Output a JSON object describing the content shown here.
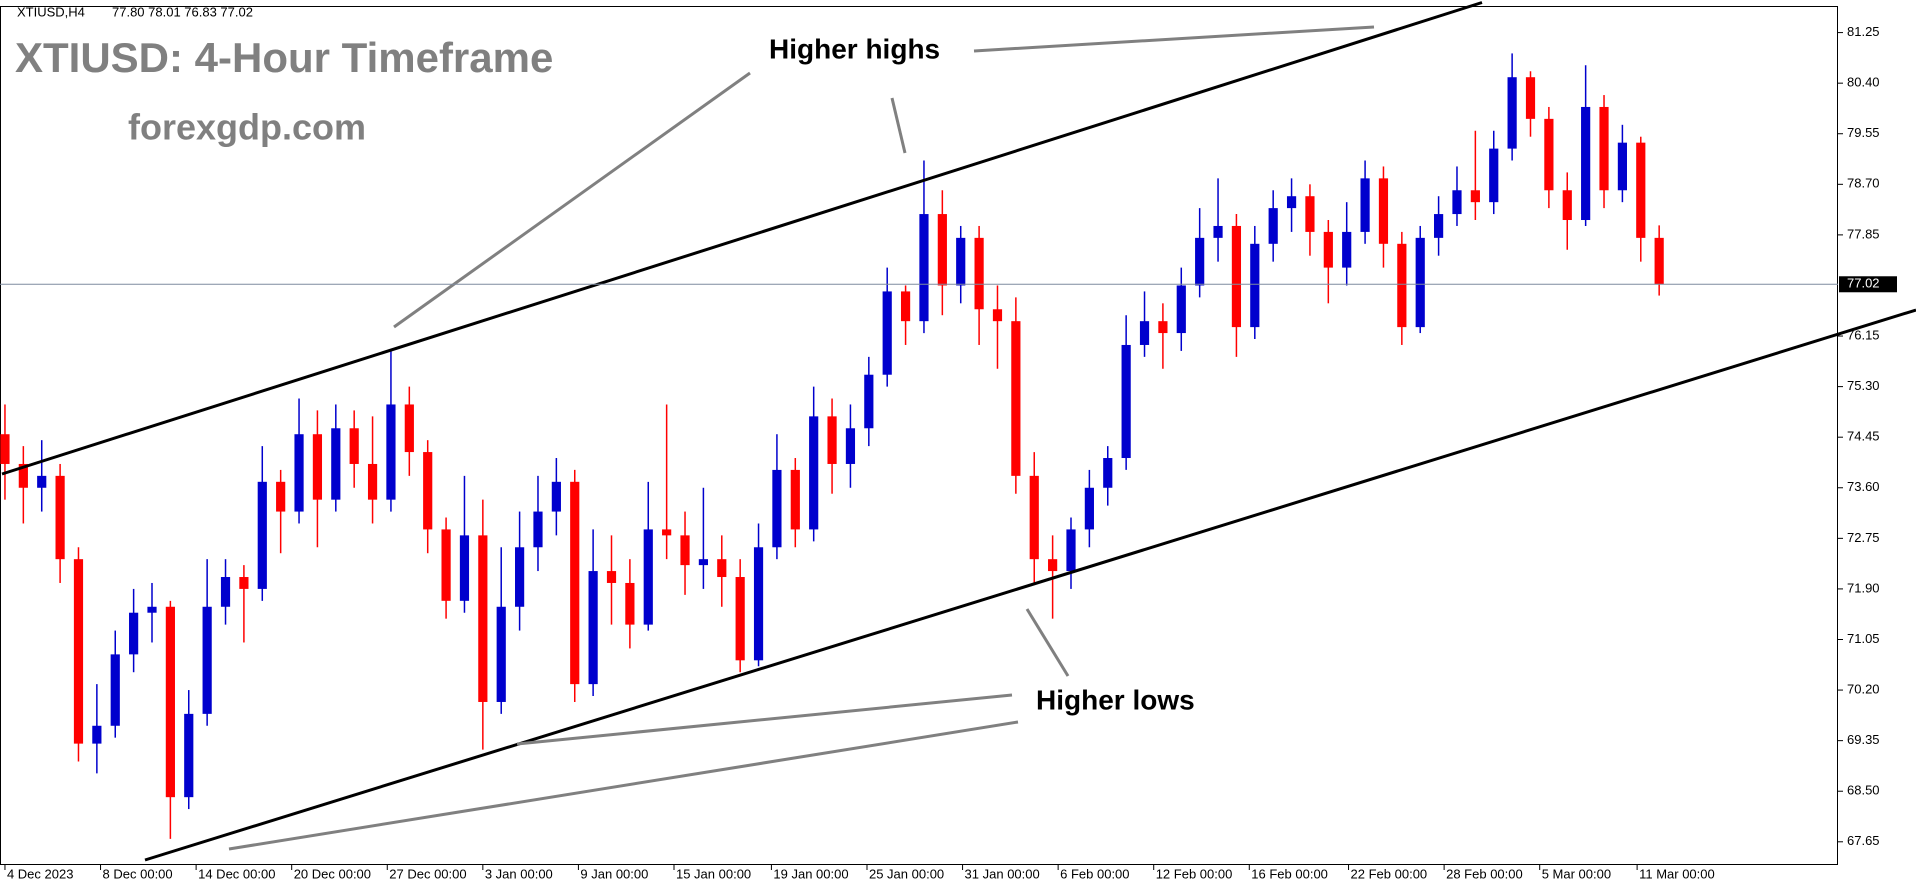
{
  "chart_data": {
    "type": "candlestick",
    "symbol": "XTIUSD,H4",
    "ohlc_text": "77.80 78.01 76.83 77.02",
    "title": "XTIUSD: 4-Hour Timeframe",
    "subtitle": "forexgdp.com",
    "annotations": [
      "Higher highs",
      "Higher lows"
    ],
    "up_color": "#0000cd",
    "down_color": "#ff0000",
    "last_price": 77.02,
    "xlim": [
      -0.27,
      99.73
    ],
    "ylim": [
      67.26,
      81.68
    ],
    "yticks": [
      67.65,
      {
        "value": 68.5,
        "label": "68.50"
      },
      69.35,
      {
        "value": 70.2,
        "label": "70.20"
      },
      71.05,
      {
        "value": 71.9,
        "label": "71.90"
      },
      72.75,
      {
        "value": 73.6,
        "label": "73.60"
      },
      74.45,
      {
        "value": 75.3,
        "label": "75.30"
      },
      76.15,
      77.85,
      {
        "value": 78.7,
        "label": "78.70"
      },
      79.55,
      {
        "value": 80.4,
        "label": "80.40"
      },
      81.25
    ],
    "xticks": [
      {
        "value": 0,
        "label": "4 Dec 2023"
      },
      {
        "value": 5.2,
        "label": "8 Dec 00:00"
      },
      {
        "value": 10.4,
        "label": "14 Dec 00:00"
      },
      {
        "value": 15.6,
        "label": "20 Dec 00:00"
      },
      {
        "value": 20.8,
        "label": "27 Dec 00:00"
      },
      {
        "value": 26,
        "label": "3 Jan 00:00"
      },
      {
        "value": 31.2,
        "label": "9 Jan 00:00"
      },
      {
        "value": 36.4,
        "label": "15 Jan 00:00"
      },
      {
        "value": 41.7,
        "label": "19 Jan 00:00"
      },
      {
        "value": 46.9,
        "label": "25 Jan 00:00"
      },
      {
        "value": 52.1,
        "label": "31 Jan 00:00"
      },
      {
        "value": 57.3,
        "label": "6 Feb 00:00"
      },
      {
        "value": 62.5,
        "label": "12 Feb 00:00"
      },
      {
        "value": 67.7,
        "label": "16 Feb 00:00"
      },
      {
        "value": 73.1,
        "label": "22 Feb 00:00"
      },
      {
        "value": 78.3,
        "label": "28 Feb 00:00"
      },
      {
        "value": 83.5,
        "label": "5 Mar 00:00"
      },
      {
        "value": 88.8,
        "label": "11 Mar 00:00"
      }
    ],
    "open": [
      74.5,
      74.0,
      73.6,
      73.8,
      72.4,
      69.3,
      69.6,
      70.8,
      71.5,
      71.6,
      68.4,
      69.8,
      71.6,
      72.1,
      71.9,
      73.7,
      73.2,
      74.5,
      73.4,
      74.6,
      74.0,
      73.4,
      75.0,
      74.2,
      72.9,
      71.7,
      72.8,
      70.0,
      71.6,
      72.6,
      73.2,
      73.7,
      70.3,
      72.2,
      72.0,
      71.3,
      72.9,
      72.8,
      72.3,
      72.4,
      72.1,
      70.7,
      72.6,
      73.9,
      72.9,
      74.8,
      74.0,
      74.6,
      75.5,
      76.9,
      76.4,
      78.2,
      77.0,
      77.8,
      76.6,
      76.4,
      73.8,
      72.4,
      72.2,
      72.9,
      73.6,
      74.1,
      76.0,
      76.4,
      76.2,
      77.0,
      77.8,
      78.0,
      76.3,
      77.7,
      78.3,
      78.5,
      77.9,
      77.3,
      77.9,
      78.8,
      77.7,
      76.3,
      77.8,
      78.2,
      78.6,
      78.4,
      79.3,
      80.5,
      79.8,
      78.6,
      78.1,
      80.0,
      78.6,
      79.4,
      77.8
    ],
    "high": [
      75.0,
      74.3,
      74.4,
      74.0,
      72.6,
      70.3,
      71.2,
      71.9,
      72.0,
      71.7,
      70.2,
      72.4,
      72.4,
      72.3,
      74.3,
      73.9,
      75.1,
      74.9,
      75.0,
      74.9,
      74.8,
      75.9,
      75.3,
      74.4,
      73.1,
      73.8,
      73.4,
      72.6,
      73.2,
      73.8,
      74.1,
      73.9,
      72.9,
      72.8,
      72.4,
      73.7,
      75.0,
      73.2,
      73.6,
      72.8,
      72.4,
      73.0,
      74.5,
      74.1,
      75.3,
      75.1,
      75.0,
      75.8,
      77.3,
      77.0,
      79.1,
      78.6,
      78.0,
      78.0,
      77.0,
      76.8,
      74.2,
      72.8,
      73.1,
      73.9,
      74.3,
      76.5,
      76.9,
      76.7,
      77.3,
      78.3,
      78.8,
      78.2,
      78.0,
      78.6,
      78.8,
      78.7,
      78.1,
      78.4,
      79.1,
      79.0,
      77.9,
      78.0,
      78.5,
      79.0,
      79.6,
      79.6,
      80.9,
      80.6,
      80.0,
      78.9,
      80.7,
      80.2,
      79.7,
      79.5,
      78.01
    ],
    "low": [
      73.4,
      73.0,
      73.2,
      72.0,
      69.0,
      68.8,
      69.4,
      70.5,
      71.0,
      67.7,
      68.2,
      69.6,
      71.3,
      71.0,
      71.7,
      72.5,
      73.0,
      72.6,
      73.2,
      73.6,
      73.0,
      73.2,
      73.8,
      72.5,
      71.4,
      71.5,
      69.2,
      69.8,
      71.2,
      72.2,
      72.8,
      70.0,
      70.1,
      71.3,
      70.9,
      71.2,
      72.4,
      71.8,
      71.9,
      71.6,
      70.5,
      70.6,
      72.4,
      72.6,
      72.7,
      73.5,
      73.6,
      74.3,
      75.3,
      76.0,
      76.2,
      76.5,
      76.7,
      76.0,
      75.6,
      73.5,
      72.0,
      71.4,
      71.9,
      72.6,
      73.3,
      73.9,
      75.8,
      75.6,
      75.9,
      76.8,
      77.4,
      75.8,
      76.1,
      77.4,
      77.9,
      77.5,
      76.7,
      77.0,
      77.7,
      77.3,
      76.0,
      76.2,
      77.5,
      78.0,
      78.1,
      78.2,
      79.1,
      79.5,
      78.3,
      77.6,
      78.0,
      78.3,
      78.4,
      77.4,
      76.83
    ],
    "close": [
      74.0,
      73.6,
      73.8,
      72.4,
      69.3,
      69.6,
      70.8,
      71.5,
      71.6,
      68.4,
      69.8,
      71.6,
      72.1,
      71.9,
      73.7,
      73.2,
      74.5,
      73.4,
      74.6,
      74.0,
      73.4,
      75.0,
      74.2,
      72.9,
      71.7,
      72.8,
      70.0,
      71.6,
      72.6,
      73.2,
      73.7,
      70.3,
      72.2,
      72.0,
      71.3,
      72.9,
      72.8,
      72.3,
      72.4,
      72.1,
      70.7,
      72.6,
      73.9,
      72.9,
      74.8,
      74.0,
      74.6,
      75.5,
      76.9,
      76.4,
      78.2,
      77.0,
      77.8,
      76.6,
      76.4,
      73.8,
      72.4,
      72.2,
      72.9,
      73.6,
      74.1,
      76.0,
      76.4,
      76.2,
      77.0,
      77.8,
      78.0,
      76.3,
      77.7,
      78.3,
      78.5,
      77.9,
      77.3,
      77.9,
      78.8,
      77.7,
      76.3,
      77.8,
      78.2,
      78.6,
      78.4,
      79.3,
      80.5,
      79.8,
      78.6,
      78.1,
      80.0,
      78.6,
      79.4,
      77.8,
      77.02
    ]
  }
}
